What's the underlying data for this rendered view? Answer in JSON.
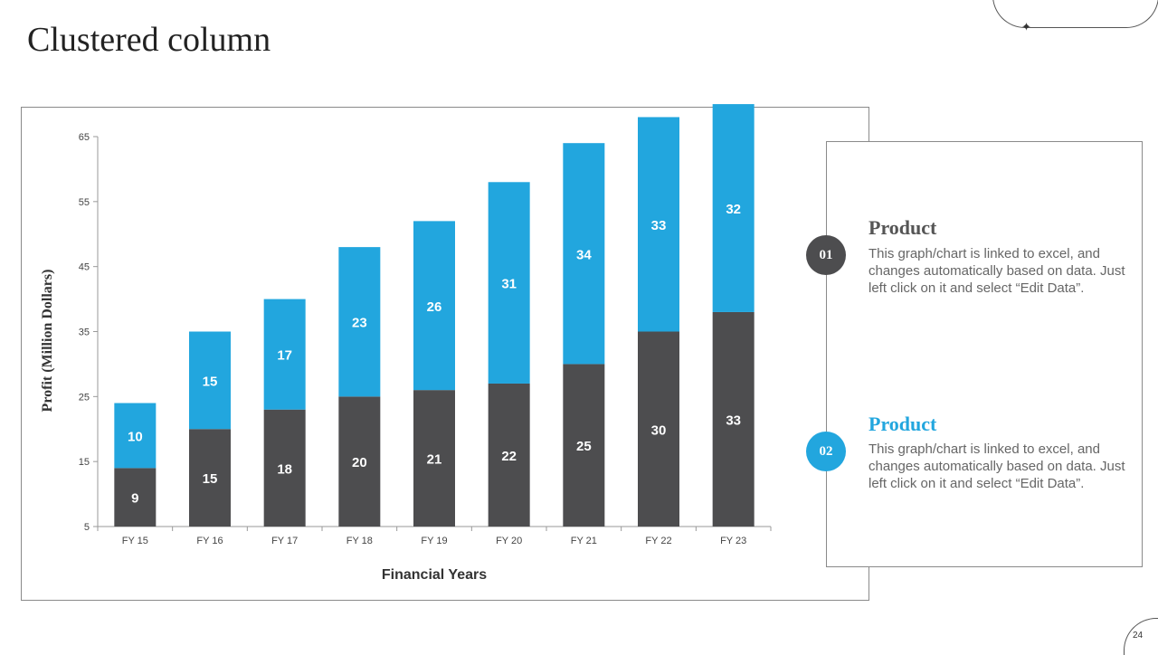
{
  "slide": {
    "title": "Clustered column",
    "page_number": "24",
    "star_glyph": "✦"
  },
  "legend": [
    {
      "badge": "01",
      "title": "Product",
      "text": "This graph/chart is linked to excel, and changes automatically based on data. Just left click on it and select “Edit Data”.",
      "color": "#4d4d4f"
    },
    {
      "badge": "02",
      "title": "Product",
      "text": "This graph/chart is linked to excel, and changes automatically based on data. Just left click on it and select “Edit Data”.",
      "color": "#22a6de"
    }
  ],
  "chart_data": {
    "type": "bar",
    "stacked": true,
    "categories": [
      "FY 15",
      "FY 16",
      "FY 17",
      "FY 18",
      "FY 19",
      "FY 20",
      "FY 21",
      "FY 22",
      "FY 23"
    ],
    "series": [
      {
        "name": "Product 01",
        "color": "#4d4d4f",
        "values": [
          9,
          15,
          18,
          20,
          21,
          22,
          25,
          30,
          33
        ]
      },
      {
        "name": "Product 02",
        "color": "#22a6de",
        "values": [
          10,
          15,
          17,
          23,
          26,
          31,
          34,
          33,
          32
        ]
      }
    ],
    "xlabel": "Financial Years",
    "ylabel": "Profit (Million Dollars)",
    "ylim": [
      5,
      65
    ],
    "yticks": [
      "5",
      "15",
      "25",
      "35",
      "45",
      "55",
      "65"
    ],
    "grid": false
  }
}
